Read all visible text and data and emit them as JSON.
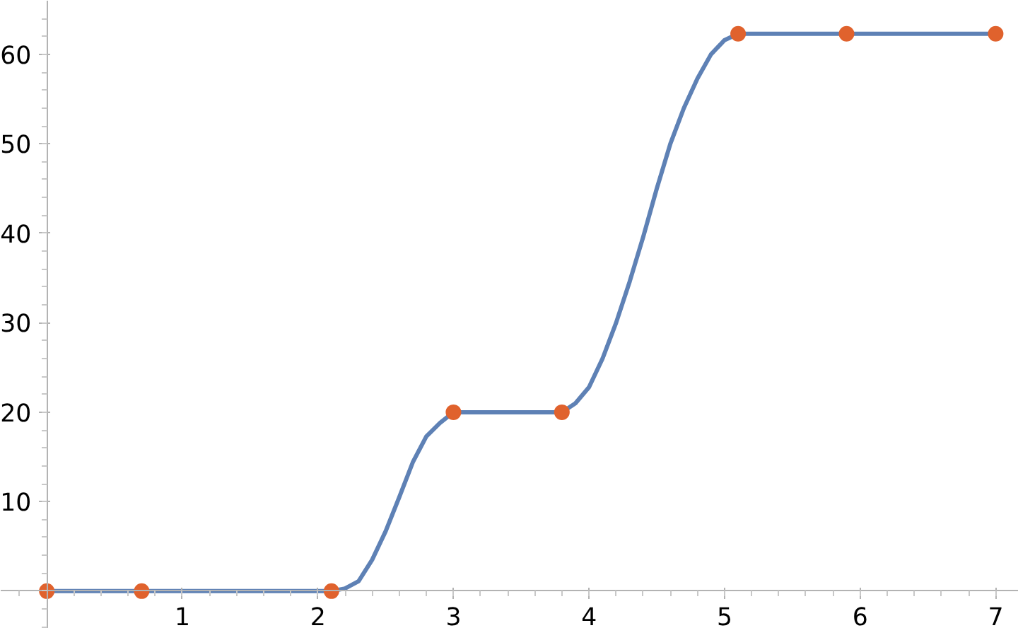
{
  "chart_data": {
    "type": "line",
    "x": [
      0,
      0.7,
      2.1,
      3,
      3.8,
      5.1,
      5.9,
      7
    ],
    "series": [
      {
        "color": "#5e81b5",
        "x": [
          0,
          0.7,
          2.1,
          2.2,
          2.3,
          2.4,
          2.5,
          2.6,
          2.7,
          2.8,
          2.9,
          3,
          3.8,
          3.9,
          4,
          4.1,
          4.2,
          4.3,
          4.4,
          4.5,
          4.6,
          4.7,
          4.8,
          4.9,
          5,
          5.1,
          5.9,
          7
        ],
        "values": [
          0,
          0,
          0,
          0.3,
          1.1,
          3.5,
          6.7,
          10.5,
          14.4,
          17.3,
          18.8,
          20,
          20,
          21,
          22.8,
          26,
          30,
          34.6,
          39.6,
          45,
          50,
          54,
          57.3,
          60,
          61.6,
          62.3,
          62.3,
          62.3
        ]
      },
      {
        "type": "scatter",
        "marker": "circle",
        "color": "#e0622d",
        "values": [
          0,
          0,
          0,
          20,
          20,
          62.3,
          62.3,
          62.3
        ]
      }
    ],
    "xlim": [
      -0.34,
      7.17
    ],
    "ylim": [
      -4.2,
      66
    ],
    "xticks": [
      1,
      2,
      3,
      4,
      5,
      6,
      7
    ],
    "yticks": [
      10,
      20,
      30,
      40,
      50,
      60
    ],
    "grid": false
  }
}
